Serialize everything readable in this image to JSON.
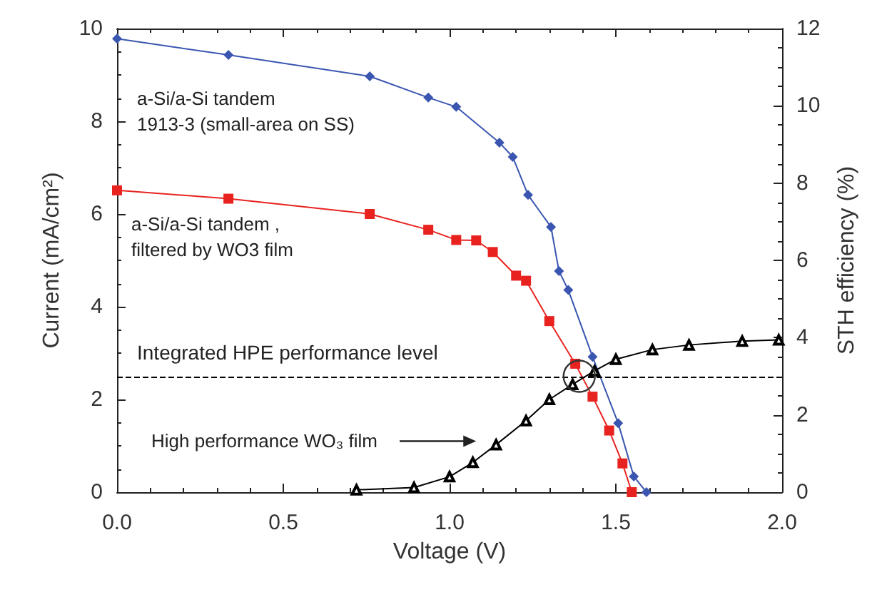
{
  "chart_data": {
    "type": "line",
    "xlabel": "Voltage (V)",
    "ylabel": "Current (mA/cm²)",
    "y2label": "STH efficiency (%)",
    "xlim": [
      0,
      2
    ],
    "xticks": [
      {
        "value": 0,
        "label": "0.0"
      },
      {
        "value": 0.5,
        "label": "0.5"
      },
      {
        "value": 1,
        "label": "1.0"
      },
      {
        "value": 1.5,
        "label": "1.5"
      },
      {
        "value": 2,
        "label": "2.0"
      }
    ],
    "ylim": [
      0,
      10
    ],
    "yticks": [
      0,
      2,
      4,
      6,
      8,
      10
    ],
    "y2lim": [
      0,
      12
    ],
    "y2ticks": [
      0,
      2,
      4,
      6,
      8,
      10,
      12
    ],
    "grid": false,
    "legend": false,
    "series": [
      {
        "name": "a-Si/a-Si tandem\n1913-3 (small-area on SS)",
        "color": "#3a56b0",
        "marker": "diamond",
        "x": [
          0,
          0.335,
          0.76,
          0.936,
          1.02,
          1.15,
          1.19,
          1.236,
          1.305,
          1.329,
          1.357,
          1.43,
          1.507,
          1.554,
          1.592
        ],
        "values": [
          9.78,
          9.43,
          8.97,
          8.51,
          8.31,
          7.54,
          7.23,
          6.41,
          5.72,
          4.77,
          4.36,
          2.92,
          1.49,
          0.34,
          0
        ]
      },
      {
        "name": "a-Si/a-Si tandem ,\nfiltered by WO3 film",
        "color": "#e8231f",
        "marker": "square",
        "x": [
          0,
          0.335,
          0.76,
          0.936,
          1.02,
          1.08,
          1.13,
          1.2,
          1.23,
          1.3,
          1.378,
          1.43,
          1.48,
          1.52,
          1.548
        ],
        "values": [
          6.51,
          6.33,
          6.0,
          5.66,
          5.44,
          5.43,
          5.18,
          4.67,
          4.56,
          3.69,
          2.77,
          2.06,
          1.33,
          0.62,
          0
        ]
      },
      {
        "name": "High performance WO₃ film",
        "color": "#000000",
        "marker": "triangle",
        "axis": "y2",
        "x": [
          0.72,
          0.893,
          1.0,
          1.07,
          1.14,
          1.23,
          1.3,
          1.37,
          1.436,
          1.5,
          1.61,
          1.72,
          1.88,
          1.99
        ],
        "values": [
          0.06,
          0.12,
          0.4,
          0.77,
          1.23,
          1.85,
          2.4,
          2.79,
          3.14,
          3.44,
          3.69,
          3.81,
          3.91,
          3.94
        ]
      }
    ],
    "ref_lines": [
      {
        "axis": "y",
        "value": 2.5,
        "label": "Integrated HPE performance level",
        "color": "#000000",
        "line_style": "dashed"
      }
    ]
  }
}
